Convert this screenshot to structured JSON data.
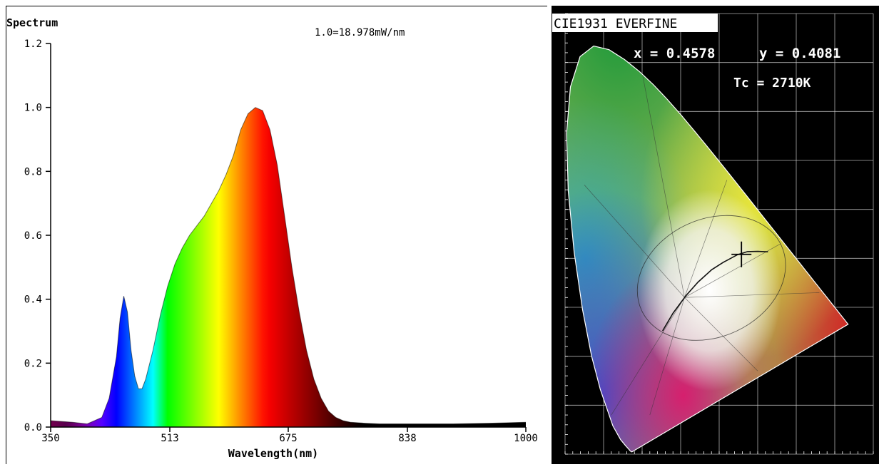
{
  "chart_data": [
    {
      "type": "area",
      "title": "Spectrum",
      "annotation": "1.0=18.978mW/nm",
      "xlabel": "Wavelength(nm)",
      "ylabel": "",
      "xlim": [
        350,
        1000
      ],
      "ylim": [
        0,
        1.2
      ],
      "x_ticks": [
        350,
        513,
        675,
        838,
        1000
      ],
      "x_tick_labels": [
        "350",
        "513",
        "675",
        "838",
        "1000"
      ],
      "y_ticks": [
        0,
        0.2,
        0.4,
        0.6,
        0.8,
        1.0,
        1.2
      ],
      "y_tick_labels": [
        "0.0",
        "0.2",
        "0.4",
        "0.6",
        "0.8",
        "1.0",
        "1.2"
      ],
      "grid": false,
      "fill": "wavelength-colored spectrum",
      "x": [
        350,
        380,
        400,
        420,
        430,
        440,
        445,
        450,
        455,
        460,
        465,
        470,
        475,
        480,
        490,
        500,
        510,
        520,
        530,
        540,
        550,
        560,
        570,
        580,
        590,
        600,
        610,
        620,
        630,
        640,
        650,
        660,
        670,
        680,
        690,
        700,
        710,
        720,
        730,
        740,
        750,
        760,
        780,
        800,
        850,
        900,
        950,
        1000
      ],
      "y": [
        0.02,
        0.015,
        0.01,
        0.03,
        0.09,
        0.22,
        0.34,
        0.41,
        0.36,
        0.24,
        0.16,
        0.12,
        0.12,
        0.15,
        0.24,
        0.35,
        0.44,
        0.51,
        0.56,
        0.6,
        0.63,
        0.66,
        0.7,
        0.74,
        0.79,
        0.85,
        0.93,
        0.98,
        1.0,
        0.99,
        0.93,
        0.82,
        0.66,
        0.5,
        0.36,
        0.24,
        0.15,
        0.09,
        0.05,
        0.03,
        0.02,
        0.015,
        0.012,
        0.01,
        0.01,
        0.01,
        0.012,
        0.015
      ]
    },
    {
      "type": "scatter",
      "title": "CIE1931 EVERFINE",
      "x_text": "x = 0.4578",
      "y_text": "y = 0.4081",
      "tc_text": "Tc = 2710K",
      "marker_label": "+",
      "point": {
        "x": 0.4578,
        "y": 0.4081
      },
      "xlim": [
        0,
        0.8
      ],
      "ylim": [
        0,
        0.9
      ],
      "grid": true
    }
  ],
  "colors": {
    "cie_background": "#000000",
    "axis": "#000000"
  }
}
